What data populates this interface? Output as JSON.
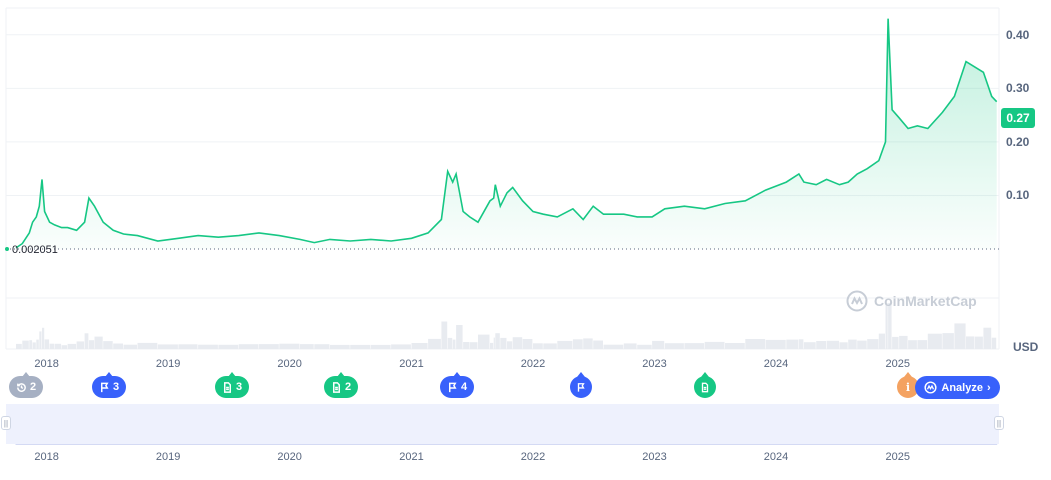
{
  "chart_data": {
    "type": "area",
    "y_axis_ticks": [
      "0.10",
      "0.20",
      "0.30",
      "0.40"
    ],
    "y_range": [
      0,
      0.45
    ],
    "x_axis_ticks": [
      "2018",
      "2019",
      "2020",
      "2021",
      "2022",
      "2023",
      "2024",
      "2025"
    ],
    "unit_label": "USD",
    "current_price_label": "0.27",
    "baseline_value_label": "0.002051",
    "series": [
      {
        "points": [
          [
            "2017-10-01",
            0.002
          ],
          [
            "2017-10-20",
            0.01
          ],
          [
            "2017-11-10",
            0.03
          ],
          [
            "2017-11-20",
            0.05
          ],
          [
            "2017-12-01",
            0.06
          ],
          [
            "2017-12-10",
            0.08
          ],
          [
            "2017-12-18",
            0.13
          ],
          [
            "2017-12-26",
            0.07
          ],
          [
            "2018-01-10",
            0.05
          ],
          [
            "2018-01-25",
            0.045
          ],
          [
            "2018-02-15",
            0.04
          ],
          [
            "2018-03-05",
            0.04
          ],
          [
            "2018-04-01",
            0.035
          ],
          [
            "2018-04-25",
            0.05
          ],
          [
            "2018-05-08",
            0.095
          ],
          [
            "2018-05-25",
            0.08
          ],
          [
            "2018-06-20",
            0.05
          ],
          [
            "2018-07-20",
            0.035
          ],
          [
            "2018-08-20",
            0.028
          ],
          [
            "2018-10-01",
            0.025
          ],
          [
            "2018-12-01",
            0.015
          ],
          [
            "2019-02-01",
            0.02
          ],
          [
            "2019-04-01",
            0.025
          ],
          [
            "2019-06-01",
            0.022
          ],
          [
            "2019-08-01",
            0.025
          ],
          [
            "2019-10-01",
            0.03
          ],
          [
            "2019-12-01",
            0.025
          ],
          [
            "2020-02-01",
            0.018
          ],
          [
            "2020-03-15",
            0.012
          ],
          [
            "2020-05-01",
            0.018
          ],
          [
            "2020-07-01",
            0.015
          ],
          [
            "2020-09-01",
            0.018
          ],
          [
            "2020-11-01",
            0.015
          ],
          [
            "2021-01-01",
            0.02
          ],
          [
            "2021-02-20",
            0.03
          ],
          [
            "2021-04-01",
            0.055
          ],
          [
            "2021-04-20",
            0.145
          ],
          [
            "2021-05-05",
            0.125
          ],
          [
            "2021-05-15",
            0.14
          ],
          [
            "2021-06-05",
            0.07
          ],
          [
            "2021-06-25",
            0.06
          ],
          [
            "2021-07-20",
            0.05
          ],
          [
            "2021-08-25",
            0.09
          ],
          [
            "2021-09-05",
            0.095
          ],
          [
            "2021-09-10",
            0.12
          ],
          [
            "2021-09-25",
            0.08
          ],
          [
            "2021-10-15",
            0.105
          ],
          [
            "2021-11-01",
            0.115
          ],
          [
            "2021-12-01",
            0.09
          ],
          [
            "2022-01-01",
            0.07
          ],
          [
            "2022-02-01",
            0.065
          ],
          [
            "2022-03-15",
            0.06
          ],
          [
            "2022-05-01",
            0.075
          ],
          [
            "2022-06-01",
            0.055
          ],
          [
            "2022-07-01",
            0.08
          ],
          [
            "2022-08-01",
            0.065
          ],
          [
            "2022-10-01",
            0.065
          ],
          [
            "2022-11-10",
            0.06
          ],
          [
            "2022-12-25",
            0.06
          ],
          [
            "2023-02-01",
            0.075
          ],
          [
            "2023-04-01",
            0.08
          ],
          [
            "2023-06-01",
            0.075
          ],
          [
            "2023-08-01",
            0.085
          ],
          [
            "2023-10-01",
            0.09
          ],
          [
            "2023-12-01",
            0.11
          ],
          [
            "2024-02-01",
            0.125
          ],
          [
            "2024-03-10",
            0.14
          ],
          [
            "2024-03-25",
            0.125
          ],
          [
            "2024-05-01",
            0.12
          ],
          [
            "2024-06-01",
            0.13
          ],
          [
            "2024-07-10",
            0.12
          ],
          [
            "2024-08-05",
            0.125
          ],
          [
            "2024-09-01",
            0.14
          ],
          [
            "2024-10-01",
            0.15
          ],
          [
            "2024-11-05",
            0.165
          ],
          [
            "2024-11-25",
            0.2
          ],
          [
            "2024-12-03",
            0.43
          ],
          [
            "2024-12-15",
            0.26
          ],
          [
            "2025-01-05",
            0.245
          ],
          [
            "2025-02-01",
            0.225
          ],
          [
            "2025-03-01",
            0.23
          ],
          [
            "2025-04-01",
            0.225
          ],
          [
            "2025-05-15",
            0.255
          ],
          [
            "2025-06-20",
            0.285
          ],
          [
            "2025-07-25",
            0.35
          ],
          [
            "2025-08-20",
            0.34
          ],
          [
            "2025-09-15",
            0.33
          ],
          [
            "2025-10-10",
            0.285
          ],
          [
            "2025-10-25",
            0.275
          ]
        ]
      }
    ],
    "grid": true,
    "line_color": "#16c784"
  },
  "watermark": "CoinMarketCap",
  "events": [
    {
      "icon": "history-icon",
      "count": "2",
      "color": "#a6b0c3"
    },
    {
      "icon": "flag-icon",
      "count": "3",
      "color": "#3861fb"
    },
    {
      "icon": "document-icon",
      "count": "3",
      "color": "#16c784"
    },
    {
      "icon": "document-icon",
      "count": "2",
      "color": "#16c784"
    },
    {
      "icon": "flag-icon",
      "count": "4",
      "color": "#3861fb"
    },
    {
      "icon": "flag-icon",
      "count": "",
      "color": "#3861fb"
    },
    {
      "icon": "document-icon",
      "count": "",
      "color": "#16c784"
    },
    {
      "icon": "info-icon",
      "count": "",
      "color": "#f4a261"
    }
  ],
  "analyze_label": "Analyze",
  "navigator": {
    "x_axis_ticks": [
      "2018",
      "2019",
      "2020",
      "2021",
      "2022",
      "2023",
      "2024",
      "2025"
    ]
  }
}
